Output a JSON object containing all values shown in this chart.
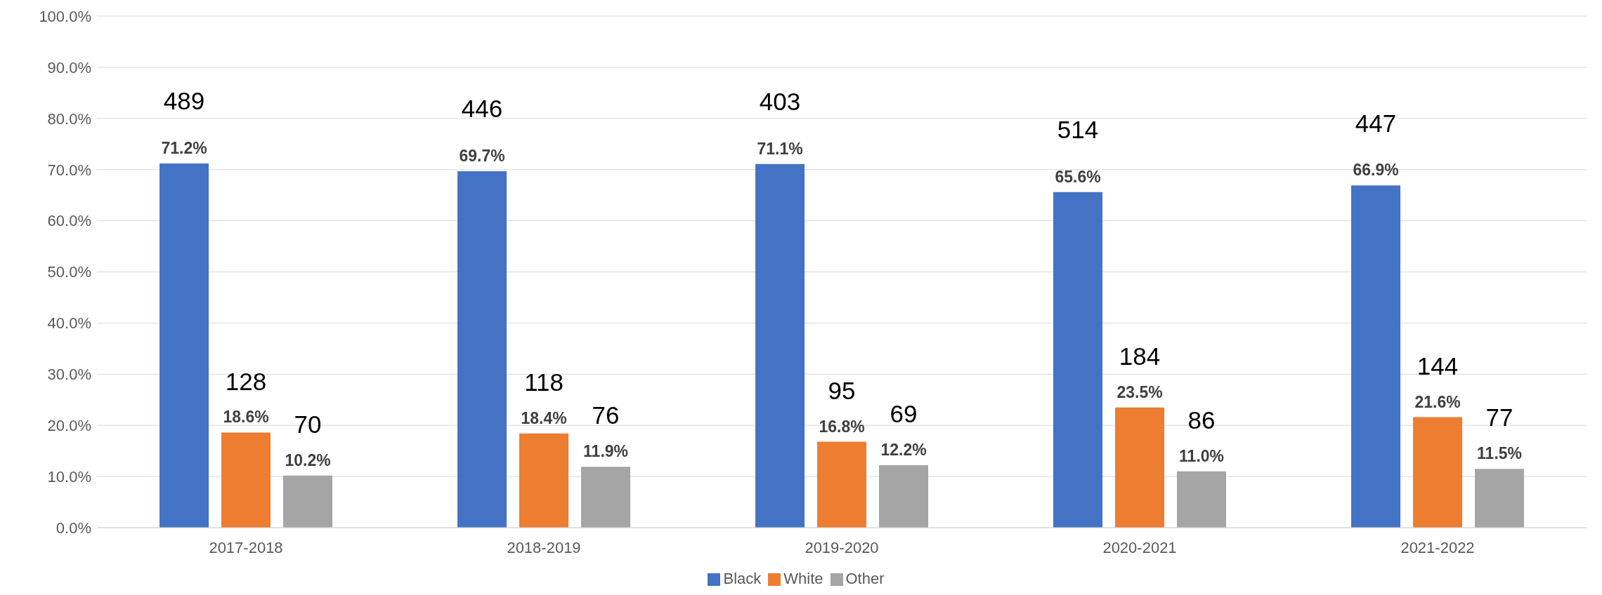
{
  "chart_data": {
    "type": "bar",
    "categories": [
      "2017-2018",
      "2018-2019",
      "2019-2020",
      "2020-2021",
      "2021-2022"
    ],
    "series": [
      {
        "name": "Black",
        "color": "#4472c4",
        "values": [
          71.2,
          69.7,
          71.1,
          65.6,
          66.9
        ],
        "value_labels": [
          "71.2%",
          "69.7%",
          "71.1%",
          "65.6%",
          "66.9%"
        ]
      },
      {
        "name": "White",
        "color": "#ed7d31",
        "values": [
          18.6,
          18.4,
          16.8,
          23.5,
          21.6
        ],
        "value_labels": [
          "18.6%",
          "18.4%",
          "16.8%",
          "23.5%",
          "21.6%"
        ]
      },
      {
        "name": "Other",
        "color": "#a5a5a5",
        "values": [
          10.2,
          11.9,
          12.2,
          11.0,
          11.5
        ],
        "value_labels": [
          "10.2%",
          "11.9%",
          "12.2%",
          "11.0%",
          "11.5%"
        ]
      }
    ],
    "ylim": [
      0,
      100
    ],
    "yticks": [
      {
        "value": 0,
        "label": "0.0%"
      },
      {
        "value": 10,
        "label": "10.0%"
      },
      {
        "value": 20,
        "label": "20.0%"
      },
      {
        "value": 30,
        "label": "30.0%"
      },
      {
        "value": 40,
        "label": "40.0%"
      },
      {
        "value": 50,
        "label": "50.0%"
      },
      {
        "value": 60,
        "label": "60.0%"
      },
      {
        "value": 70,
        "label": "70.0%"
      },
      {
        "value": 80,
        "label": "80.0%"
      },
      {
        "value": 90,
        "label": "90.0%"
      },
      {
        "value": 100,
        "label": "100.0%"
      }
    ],
    "grid": "y",
    "legend": "bottom",
    "annotations": [
      "489",
      "128",
      "70",
      "446",
      "118",
      "76",
      "403",
      "95",
      "69",
      "514",
      "184",
      "86",
      "447",
      "144",
      "77"
    ]
  }
}
